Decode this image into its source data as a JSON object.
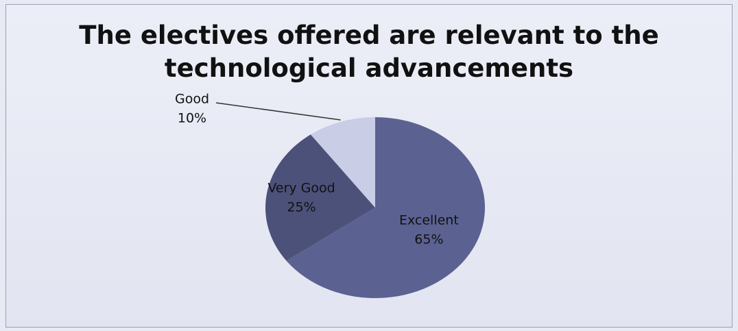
{
  "chart_data": {
    "type": "pie",
    "title": "The electives offered are relevant to the technological advancements",
    "categories": [
      "Excellent",
      "Very Good",
      "Good"
    ],
    "values": [
      65,
      25,
      10
    ],
    "value_labels": [
      "65%",
      "25%",
      "10%"
    ],
    "colors": [
      "#5b6291",
      "#4b5179",
      "#c9cde6"
    ]
  }
}
